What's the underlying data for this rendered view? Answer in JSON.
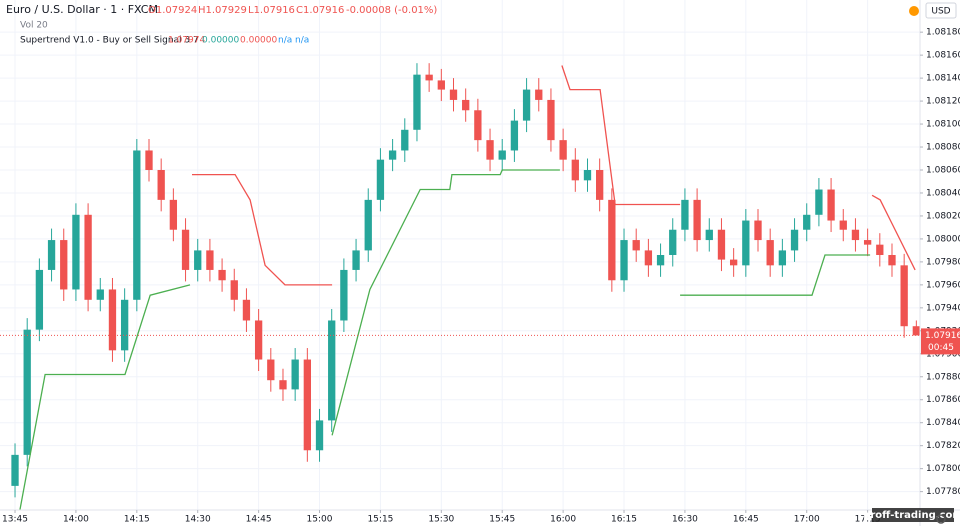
{
  "chart_data": {
    "type": "candlestick",
    "title": "Euro / U.S. Dollar · 1 · FXCM",
    "ohlc_legend": [
      "O1.07924",
      "H1.07929",
      "L1.07916",
      "C1.07916",
      "-0.00008 (-0.01%)"
    ],
    "volume_label": "Vol 20",
    "indicator": {
      "name": "Supertrend V1.0 - Buy or Sell Signal 3 7",
      "values": [
        "1.07974",
        "0.00000",
        "0.00000",
        "n/a",
        "n/a"
      ]
    },
    "currency": "USD",
    "countdown": "00:45",
    "watermark": "proff-trading.com",
    "up_color": "#26a69a",
    "down_color": "#ef5350",
    "grid": true,
    "xlim": [
      -3.7,
      222.9
    ],
    "ylim": [
      1.07764,
      1.08208
    ],
    "xticks": [
      {
        "value": 0,
        "label": "13:45"
      },
      {
        "value": 15,
        "label": "14:00"
      },
      {
        "value": 30,
        "label": "14:15"
      },
      {
        "value": 45,
        "label": "14:30"
      },
      {
        "value": 60,
        "label": "14:45"
      },
      {
        "value": 75,
        "label": "15:00"
      },
      {
        "value": 90,
        "label": "15:15"
      },
      {
        "value": 105,
        "label": "15:30"
      },
      {
        "value": 120,
        "label": "15:45"
      },
      {
        "value": 135,
        "label": "16:00"
      },
      {
        "value": 150,
        "label": "16:15"
      },
      {
        "value": 165,
        "label": "16:30"
      },
      {
        "value": 180,
        "label": "16:45"
      },
      {
        "value": 195,
        "label": "17:00"
      },
      {
        "value": 210,
        "label": "17:15"
      }
    ],
    "yticks": [
      {
        "value": 1.0778,
        "label": "1.07780"
      },
      {
        "value": 1.078,
        "label": "1.07800"
      },
      {
        "value": 1.0782,
        "label": "1.07820"
      },
      {
        "value": 1.0784,
        "label": "1.07840"
      },
      {
        "value": 1.0786,
        "label": "1.07860"
      },
      {
        "value": 1.0788,
        "label": "1.07880"
      },
      {
        "value": 1.079,
        "label": "1.07900"
      },
      {
        "value": 1.0792,
        "label": "1.07920"
      },
      {
        "value": 1.0794,
        "label": "1.07940"
      },
      {
        "value": 1.0796,
        "label": "1.07960"
      },
      {
        "value": 1.0798,
        "label": "1.07980"
      },
      {
        "value": 1.08,
        "label": "1.08000"
      },
      {
        "value": 1.0802,
        "label": "1.08020"
      },
      {
        "value": 1.0804,
        "label": "1.08040"
      },
      {
        "value": 1.0806,
        "label": "1.08060"
      },
      {
        "value": 1.0808,
        "label": "1.08080"
      },
      {
        "value": 1.081,
        "label": "1.08100"
      },
      {
        "value": 1.0812,
        "label": "1.08120"
      },
      {
        "value": 1.0814,
        "label": "1.08140"
      },
      {
        "value": 1.0816,
        "label": "1.08160"
      },
      {
        "value": 1.0818,
        "label": "1.08180"
      }
    ],
    "x": [
      0,
      3,
      6,
      9,
      12,
      15,
      18,
      21,
      24,
      27,
      30,
      33,
      36,
      39,
      42,
      45,
      48,
      51,
      54,
      57,
      60,
      63,
      66,
      69,
      72,
      75,
      78,
      81,
      84,
      87,
      90,
      93,
      96,
      99,
      102,
      105,
      108,
      111,
      114,
      117,
      120,
      123,
      126,
      129,
      132,
      135,
      138,
      141,
      144,
      147,
      150,
      153,
      156,
      159,
      162,
      165,
      168,
      171,
      174,
      177,
      180,
      183,
      186,
      189,
      192,
      195,
      198,
      201,
      204,
      207,
      210,
      213,
      216,
      219,
      222
    ],
    "open": [
      1.07785,
      1.07812,
      1.07921,
      1.07973,
      1.07999,
      1.07956,
      1.08021,
      1.07947,
      1.07956,
      1.07903,
      1.07947,
      1.08077,
      1.0806,
      1.08034,
      1.08008,
      1.07973,
      1.0799,
      1.07973,
      1.07964,
      1.07947,
      1.07929,
      1.07895,
      1.07877,
      1.07869,
      1.07895,
      1.07816,
      1.07842,
      1.07929,
      1.07973,
      1.0799,
      1.08034,
      1.08069,
      1.08077,
      1.08095,
      1.08143,
      1.08138,
      1.0813,
      1.08121,
      1.08112,
      1.08086,
      1.08069,
      1.08077,
      1.08103,
      1.0813,
      1.08121,
      1.08086,
      1.08069,
      1.08051,
      1.0806,
      1.08034,
      1.07964,
      1.07999,
      1.0799,
      1.07977,
      1.07986,
      1.08008,
      1.08034,
      1.07999,
      1.08008,
      1.07982,
      1.07977,
      1.08016,
      1.07999,
      1.07977,
      1.0799,
      1.08008,
      1.08021,
      1.08043,
      1.08016,
      1.08008,
      1.07999,
      1.07995,
      1.07986,
      1.07977,
      1.07924
    ],
    "high": [
      1.07822,
      1.07931,
      1.07983,
      1.08009,
      1.08009,
      1.08031,
      1.08031,
      1.07966,
      1.07966,
      1.07957,
      1.08087,
      1.08087,
      1.0807,
      1.08044,
      1.08018,
      1.08,
      1.08,
      1.07983,
      1.07974,
      1.07957,
      1.07939,
      1.07905,
      1.07887,
      1.07905,
      1.07905,
      1.07852,
      1.07939,
      1.07983,
      1.08,
      1.08044,
      1.08079,
      1.08087,
      1.08105,
      1.08153,
      1.08153,
      1.08148,
      1.0814,
      1.08131,
      1.08122,
      1.08096,
      1.08087,
      1.08113,
      1.0814,
      1.0814,
      1.08131,
      1.08096,
      1.08079,
      1.0807,
      1.0807,
      1.08044,
      1.08009,
      1.08009,
      1.08,
      1.07996,
      1.08018,
      1.08044,
      1.08044,
      1.08018,
      1.08018,
      1.07992,
      1.08026,
      1.08026,
      1.08009,
      1.08,
      1.08018,
      1.08031,
      1.08053,
      1.08053,
      1.08026,
      1.08018,
      1.08009,
      1.08005,
      1.07996,
      1.07987,
      1.07929
    ],
    "low": [
      1.07775,
      1.07802,
      1.07911,
      1.07963,
      1.07946,
      1.07946,
      1.07937,
      1.07937,
      1.07893,
      1.07893,
      1.07937,
      1.0805,
      1.08024,
      1.07998,
      1.07963,
      1.07963,
      1.07963,
      1.07954,
      1.07937,
      1.07919,
      1.07885,
      1.07867,
      1.07859,
      1.07859,
      1.07806,
      1.07806,
      1.07832,
      1.07919,
      1.07963,
      1.0798,
      1.08024,
      1.08059,
      1.08067,
      1.08085,
      1.08128,
      1.0812,
      1.08111,
      1.08102,
      1.08076,
      1.08059,
      1.08059,
      1.08067,
      1.08093,
      1.08111,
      1.08076,
      1.08059,
      1.08041,
      1.08041,
      1.08024,
      1.07954,
      1.07954,
      1.0798,
      1.07967,
      1.07967,
      1.07976,
      1.07998,
      1.07989,
      1.07989,
      1.07972,
      1.07967,
      1.07967,
      1.07989,
      1.07967,
      1.07967,
      1.0798,
      1.07998,
      1.08011,
      1.08006,
      1.07998,
      1.07989,
      1.07985,
      1.07976,
      1.07967,
      1.07914,
      1.07916
    ],
    "close": [
      1.07812,
      1.07921,
      1.07973,
      1.07999,
      1.07956,
      1.08021,
      1.07947,
      1.07956,
      1.07903,
      1.07947,
      1.08077,
      1.0806,
      1.08034,
      1.08008,
      1.07973,
      1.0799,
      1.07973,
      1.07964,
      1.07947,
      1.07929,
      1.07895,
      1.07877,
      1.07869,
      1.07895,
      1.07816,
      1.07842,
      1.07929,
      1.07973,
      1.0799,
      1.08034,
      1.08069,
      1.08077,
      1.08095,
      1.08143,
      1.08138,
      1.0813,
      1.08121,
      1.08112,
      1.08086,
      1.08069,
      1.08077,
      1.08103,
      1.0813,
      1.08121,
      1.08086,
      1.08069,
      1.08051,
      1.0806,
      1.08034,
      1.07964,
      1.07999,
      1.0799,
      1.07977,
      1.07986,
      1.08008,
      1.08034,
      1.07999,
      1.08008,
      1.07982,
      1.07977,
      1.08016,
      1.07999,
      1.07977,
      1.0799,
      1.08008,
      1.08021,
      1.08043,
      1.08016,
      1.08008,
      1.07999,
      1.07995,
      1.07986,
      1.07977,
      1.07924,
      1.07916
    ],
    "series": [
      {
        "color": "#4caf50",
        "x": [
          1.2,
          7.4,
          27.1,
          33.3,
          43.1,
          60,
          78.1,
          87.4,
          99.8,
          107.1,
          107.6,
          119.5,
          120,
          134.2,
          150,
          163.8,
          196.3,
          199.5,
          210.6
        ],
        "values": [
          1.07764,
          1.07882,
          1.07882,
          1.07951,
          1.0796,
          null,
          1.07829,
          1.07956,
          1.08043,
          1.08043,
          1.08056,
          1.08056,
          1.0806,
          1.0806,
          null,
          1.07951,
          1.07951,
          1.07986,
          1.07986
        ]
      },
      {
        "color": "#f05350",
        "x": [
          43.6,
          54.2,
          57.9,
          61.6,
          66.5,
          78.1,
          100,
          134.7,
          136.7,
          144.1,
          147.8,
          163.8,
          190,
          211.1,
          213.1,
          221.7
        ],
        "values": [
          1.08056,
          1.08056,
          1.08034,
          1.07977,
          1.0796,
          1.0796,
          null,
          1.08151,
          1.0813,
          1.0813,
          1.0803,
          1.0803,
          null,
          1.08038,
          1.08034,
          1.07973
        ]
      }
    ]
  }
}
